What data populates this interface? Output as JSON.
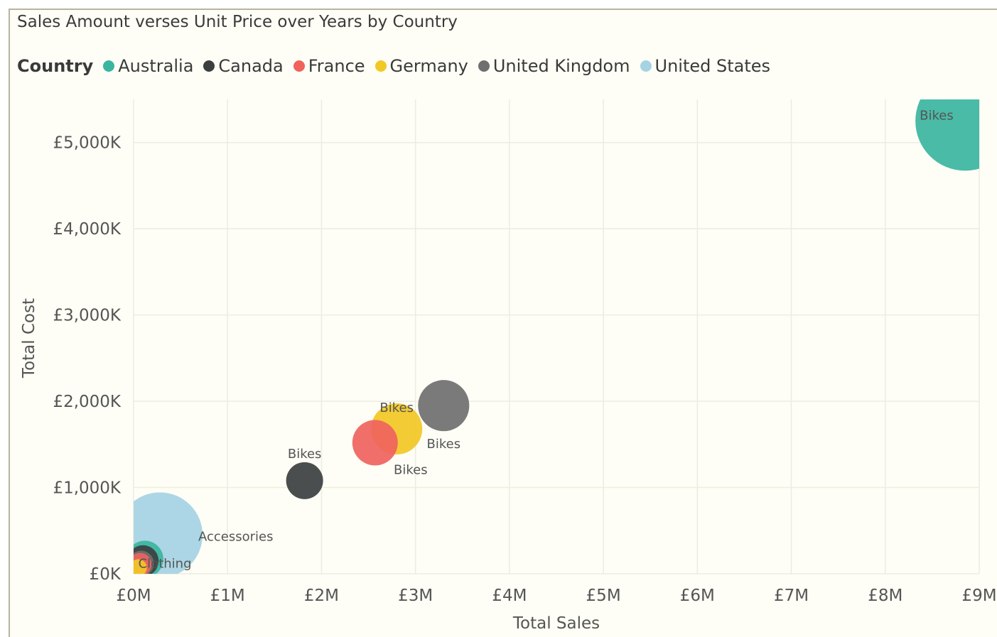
{
  "chart_data": {
    "type": "scatter",
    "title": "Sales Amount verses Unit Price over Years by Country",
    "xlabel": "Total Sales",
    "ylabel": "Total Cost",
    "legend_title": "Country",
    "legend_position": "top-left",
    "grid": true,
    "xlim": [
      0,
      9
    ],
    "ylim": [
      0,
      5500
    ],
    "x_ticks": [
      {
        "value": 0,
        "label": "£0M"
      },
      {
        "value": 1,
        "label": "£1M"
      },
      {
        "value": 2,
        "label": "£2M"
      },
      {
        "value": 3,
        "label": "£3M"
      },
      {
        "value": 4,
        "label": "£4M"
      },
      {
        "value": 5,
        "label": "£5M"
      },
      {
        "value": 6,
        "label": "£6M"
      },
      {
        "value": 7,
        "label": "£7M"
      },
      {
        "value": 8,
        "label": "£8M"
      },
      {
        "value": 9,
        "label": "£9M"
      }
    ],
    "y_ticks": [
      {
        "value": 0,
        "label": "£0K"
      },
      {
        "value": 1000,
        "label": "£1,000K"
      },
      {
        "value": 2000,
        "label": "£2,000K"
      },
      {
        "value": 3000,
        "label": "£3,000K"
      },
      {
        "value": 4000,
        "label": "£4,000K"
      },
      {
        "value": 5000,
        "label": "£5,000K"
      }
    ],
    "series": [
      {
        "name": "Australia",
        "color": "#3ab5a0",
        "points": [
          {
            "x": 8.85,
            "y": 5250,
            "size": 3.5,
            "label": "Bikes"
          },
          {
            "x": 0.12,
            "y": 170,
            "size": 1.3,
            "label": ""
          }
        ]
      },
      {
        "name": "Canada",
        "color": "#3b3f3f",
        "points": [
          {
            "x": 1.82,
            "y": 1080,
            "size": 1.3,
            "label": "Bikes"
          },
          {
            "x": 0.1,
            "y": 150,
            "size": 1.1,
            "label": ""
          }
        ]
      },
      {
        "name": "France",
        "color": "#f0635d",
        "points": [
          {
            "x": 2.57,
            "y": 1520,
            "size": 1.6,
            "label": "Bikes"
          },
          {
            "x": 0.07,
            "y": 110,
            "size": 0.8,
            "label": ""
          }
        ]
      },
      {
        "name": "Germany",
        "color": "#f2c824",
        "points": [
          {
            "x": 2.8,
            "y": 1680,
            "size": 1.8,
            "label": "Bikes"
          },
          {
            "x": 0.05,
            "y": 70,
            "size": 0.6,
            "label": "Clothing"
          }
        ]
      },
      {
        "name": "United Kingdom",
        "color": "#6f6f6f",
        "points": [
          {
            "x": 3.3,
            "y": 1950,
            "size": 1.8,
            "label": "Bikes"
          },
          {
            "x": 0.08,
            "y": 120,
            "size": 0.9,
            "label": ""
          }
        ]
      },
      {
        "name": "United States",
        "color": "#a5d3e3",
        "points": [
          {
            "x": 0.28,
            "y": 450,
            "size": 3.0,
            "label": "Accessories"
          }
        ]
      }
    ]
  }
}
